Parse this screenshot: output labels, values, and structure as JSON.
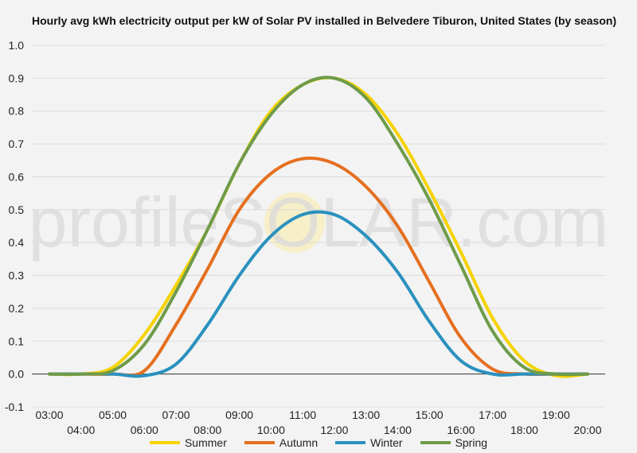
{
  "chart_data": {
    "type": "line",
    "title": "Hourly avg kWh electricity output per kW of Solar PV installed in Belvedere Tiburon, United States (by season)",
    "watermark": "profileSOLAR.com",
    "xlabel": "",
    "ylabel": "",
    "ylim": [
      -0.1,
      1.0
    ],
    "yticks": [
      "1.0",
      "0.9",
      "0.8",
      "0.7",
      "0.6",
      "0.5",
      "0.4",
      "0.3",
      "0.2",
      "0.1",
      "0.0",
      "-0.1"
    ],
    "yticks_values": [
      1.0,
      0.9,
      0.8,
      0.7,
      0.6,
      0.5,
      0.4,
      0.3,
      0.2,
      0.1,
      0.0,
      -0.1
    ],
    "x_hours": [
      3,
      4,
      5,
      6,
      7,
      8,
      9,
      10,
      11,
      12,
      13,
      14,
      15,
      16,
      17,
      18,
      19,
      20
    ],
    "xtick_labels": [
      "03:00",
      "04:00",
      "05:00",
      "06:00",
      "07:00",
      "08:00",
      "09:00",
      "10:00",
      "11:00",
      "12:00",
      "13:00",
      "14:00",
      "15:00",
      "16:00",
      "17:00",
      "18:00",
      "19:00",
      "20:00"
    ],
    "grid": true,
    "legend_position": "bottom",
    "series": [
      {
        "name": "Summer",
        "color": "#f5d300",
        "values": [
          0.0,
          0.0,
          0.02,
          0.12,
          0.27,
          0.44,
          0.64,
          0.8,
          0.88,
          0.9,
          0.85,
          0.73,
          0.56,
          0.37,
          0.17,
          0.04,
          -0.005,
          0.0
        ]
      },
      {
        "name": "Autumn",
        "color": "#e56f1f",
        "values": [
          0.0,
          0.0,
          0.0,
          0.01,
          0.15,
          0.32,
          0.5,
          0.61,
          0.655,
          0.64,
          0.57,
          0.45,
          0.28,
          0.11,
          0.015,
          0.0,
          0.0,
          0.0
        ]
      },
      {
        "name": "Winter",
        "color": "#2a91bf",
        "values": [
          0.0,
          0.0,
          0.0,
          -0.005,
          0.03,
          0.15,
          0.3,
          0.42,
          0.485,
          0.485,
          0.42,
          0.31,
          0.16,
          0.04,
          0.0,
          0.0,
          0.0,
          0.0
        ]
      },
      {
        "name": "Spring",
        "color": "#6e9b4a",
        "values": [
          0.0,
          0.0,
          0.01,
          0.09,
          0.25,
          0.44,
          0.64,
          0.79,
          0.88,
          0.9,
          0.84,
          0.7,
          0.53,
          0.33,
          0.13,
          0.02,
          0.0,
          0.0
        ]
      }
    ]
  }
}
